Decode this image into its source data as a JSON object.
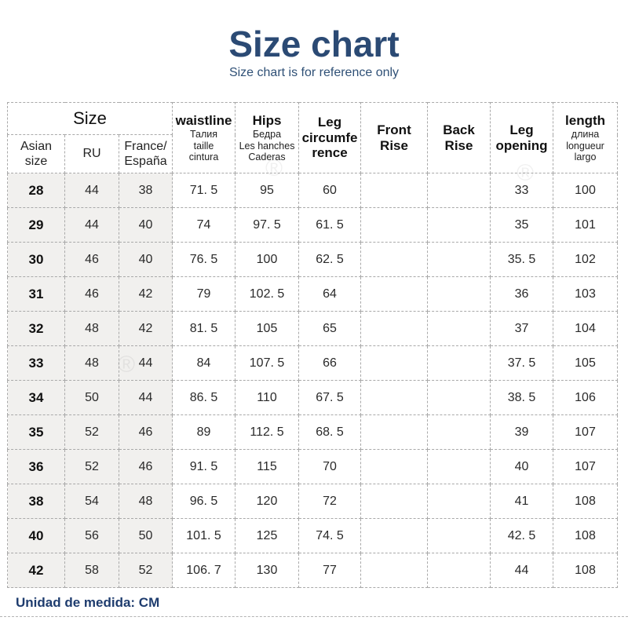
{
  "page": {
    "title": "Size chart",
    "subtitle": "Size chart is for reference only",
    "footer_note": "Unidad de medida: CM",
    "watermark_glyph": "®"
  },
  "colors": {
    "title_navy": "#2b4a74",
    "footer_navy": "#1e3c6e",
    "border_gray": "#a9a9a9",
    "shaded_column_bg": "#f1f0ee"
  },
  "table": {
    "size_group_label": "Size",
    "size_subcols": [
      "Asian\nsize",
      "RU",
      "France/\nEspaña"
    ],
    "measure_cols": [
      {
        "label": "waistline",
        "sub": "Талия\ntaille\ncintura"
      },
      {
        "label": "Hips",
        "sub": "Бедра\nLes hanches\nCaderas"
      },
      {
        "label": "Leg\ncircumfe\nrence",
        "sub": ""
      },
      {
        "label": "Front\nRise",
        "sub": ""
      },
      {
        "label": "Back\nRise",
        "sub": ""
      },
      {
        "label": "Leg\nopening",
        "sub": ""
      },
      {
        "label": "length",
        "sub": "длина\nlongueur\nlargo"
      }
    ],
    "col_ids": [
      "asian-size",
      "ru",
      "france-espana",
      "waistline",
      "hips",
      "leg-circumference",
      "front-rise",
      "back-rise",
      "leg-opening",
      "length"
    ],
    "rows": [
      [
        "28",
        "44",
        "38",
        "71. 5",
        "95",
        "60",
        "",
        "",
        "33",
        "100"
      ],
      [
        "29",
        "44",
        "40",
        "74",
        "97. 5",
        "61. 5",
        "",
        "",
        "35",
        "101"
      ],
      [
        "30",
        "46",
        "40",
        "76. 5",
        "100",
        "62. 5",
        "",
        "",
        "35. 5",
        "102"
      ],
      [
        "31",
        "46",
        "42",
        "79",
        "102. 5",
        "64",
        "",
        "",
        "36",
        "103"
      ],
      [
        "32",
        "48",
        "42",
        "81. 5",
        "105",
        "65",
        "",
        "",
        "37",
        "104"
      ],
      [
        "33",
        "48",
        "44",
        "84",
        "107. 5",
        "66",
        "",
        "",
        "37. 5",
        "105"
      ],
      [
        "34",
        "50",
        "44",
        "86. 5",
        "110",
        "67. 5",
        "",
        "",
        "38. 5",
        "106"
      ],
      [
        "35",
        "52",
        "46",
        "89",
        "112. 5",
        "68. 5",
        "",
        "",
        "39",
        "107"
      ],
      [
        "36",
        "52",
        "46",
        "91. 5",
        "115",
        "70",
        "",
        "",
        "40",
        "107"
      ],
      [
        "38",
        "54",
        "48",
        "96. 5",
        "120",
        "72",
        "",
        "",
        "41",
        "108"
      ],
      [
        "40",
        "56",
        "50",
        "101. 5",
        "125",
        "74. 5",
        "",
        "",
        "42. 5",
        "108"
      ],
      [
        "42",
        "58",
        "52",
        "106. 7",
        "130",
        "77",
        "",
        "",
        "44",
        "108"
      ]
    ],
    "unit_note": "CM"
  }
}
